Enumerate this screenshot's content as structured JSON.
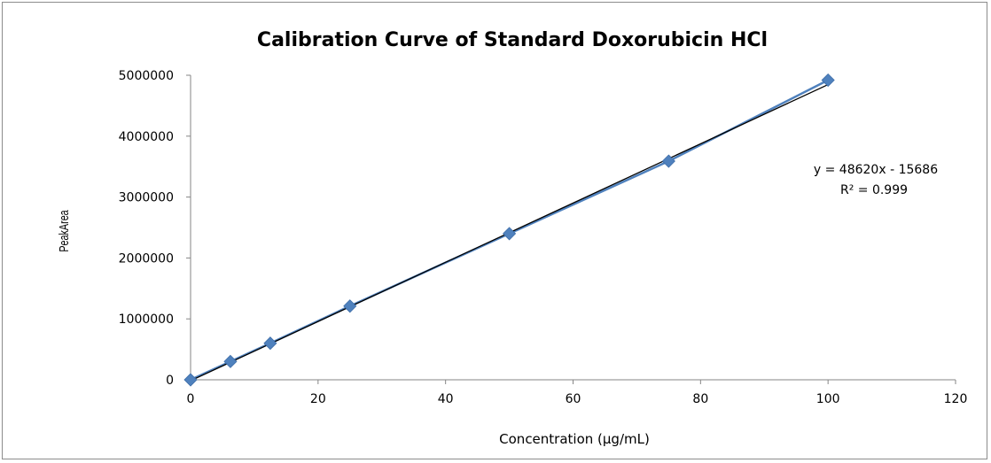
{
  "chart_data": {
    "type": "scatter",
    "title": "Calibration Curve of Standard Doxorubicin HCl",
    "xlabel": "Concentration (μg/mL)",
    "ylabel": "PeakArea",
    "xlim": [
      0,
      120
    ],
    "ylim": [
      0,
      5000000
    ],
    "x_ticks": [
      0,
      20,
      40,
      60,
      80,
      100,
      120
    ],
    "y_ticks": [
      0,
      1000000,
      2000000,
      3000000,
      4000000,
      5000000
    ],
    "x_tick_labels": [
      "0",
      "20",
      "40",
      "60",
      "80",
      "100",
      "120"
    ],
    "y_tick_labels": [
      "0",
      "1000000",
      "2000000",
      "3000000",
      "4000000",
      "5000000"
    ],
    "grid": false,
    "legend": "none",
    "series": [
      {
        "x": [
          0,
          6.25,
          12.5,
          25,
          50,
          75,
          100
        ],
        "y": [
          0,
          300000,
          600000,
          1210000,
          2400000,
          3590000,
          4920000
        ],
        "marker": "diamond",
        "connected": true,
        "color": "#4f81bd"
      }
    ],
    "trendline": {
      "type": "linear",
      "slope": 48620,
      "intercept": -15686,
      "x_range": [
        0,
        100
      ],
      "color": "#000000"
    },
    "annotations": {
      "equation": "y = 48620x - 15686",
      "r_squared": "R² = 0.999"
    }
  }
}
